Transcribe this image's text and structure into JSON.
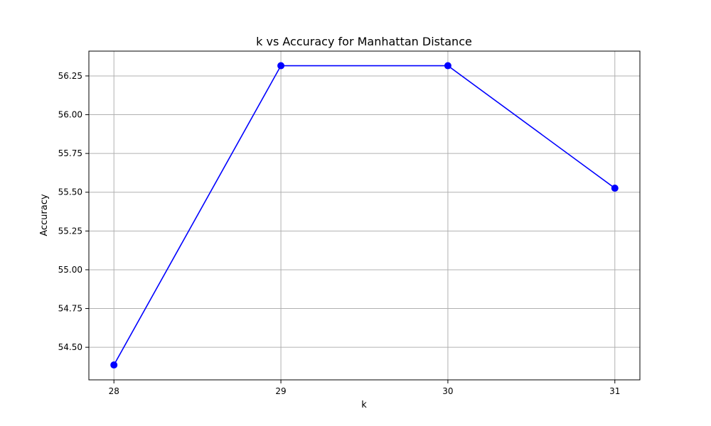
{
  "chart_data": {
    "type": "line",
    "title": "k vs Accuracy for Manhattan Distance",
    "xlabel": "k",
    "ylabel": "Accuracy",
    "x": [
      28,
      29,
      30,
      31
    ],
    "series": [
      {
        "values": [
          54.386,
          56.316,
          56.316,
          55.526
        ],
        "color": "#0000ff",
        "marker": "circle"
      }
    ],
    "xticks": [
      "28",
      "29",
      "30",
      "31"
    ],
    "yticks": [
      "54.50",
      "54.75",
      "55.00",
      "55.25",
      "55.50",
      "55.75",
      "56.00",
      "56.25"
    ],
    "xlim": [
      27.85,
      31.15
    ],
    "ylim": [
      54.29,
      56.41
    ],
    "grid": true,
    "legend": "none"
  }
}
